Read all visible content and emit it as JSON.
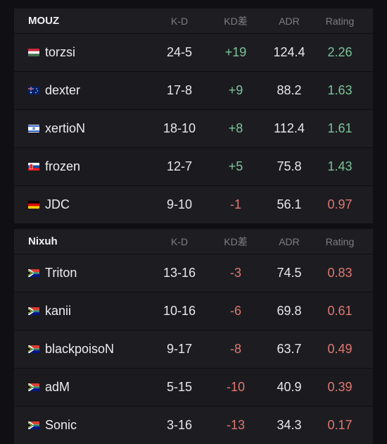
{
  "columns": {
    "kd": "K-D",
    "diff": "KD差",
    "adr": "ADR",
    "rating": "Rating"
  },
  "teams": [
    {
      "name": "MOUZ",
      "players": [
        {
          "name": "torzsi",
          "flag": "hungary-flag-icon",
          "kd": "24-5",
          "diff": "+19",
          "adr": "124.4",
          "rating": "2.26"
        },
        {
          "name": "dexter",
          "flag": "australia-flag-icon",
          "kd": "17-8",
          "diff": "+9",
          "adr": "88.2",
          "rating": "1.63"
        },
        {
          "name": "xertioN",
          "flag": "israel-flag-icon",
          "kd": "18-10",
          "diff": "+8",
          "adr": "112.4",
          "rating": "1.61"
        },
        {
          "name": "frozen",
          "flag": "slovakia-flag-icon",
          "kd": "12-7",
          "diff": "+5",
          "adr": "75.8",
          "rating": "1.43"
        },
        {
          "name": "JDC",
          "flag": "germany-flag-icon",
          "kd": "9-10",
          "diff": "-1",
          "adr": "56.1",
          "rating": "0.97"
        }
      ]
    },
    {
      "name": "Nixuh",
      "players": [
        {
          "name": "Triton",
          "flag": "south-africa-flag-icon",
          "kd": "13-16",
          "diff": "-3",
          "adr": "74.5",
          "rating": "0.83"
        },
        {
          "name": "kanii",
          "flag": "south-africa-flag-icon",
          "kd": "10-16",
          "diff": "-6",
          "adr": "69.8",
          "rating": "0.61"
        },
        {
          "name": "blackpoisoN",
          "flag": "south-africa-flag-icon",
          "kd": "9-17",
          "diff": "-8",
          "adr": "63.7",
          "rating": "0.49"
        },
        {
          "name": "adM",
          "flag": "south-africa-flag-icon",
          "kd": "5-15",
          "diff": "-10",
          "adr": "40.9",
          "rating": "0.39"
        },
        {
          "name": "Sonic",
          "flag": "south-africa-flag-icon",
          "kd": "3-16",
          "diff": "-13",
          "adr": "34.3",
          "rating": "0.17"
        }
      ]
    }
  ],
  "colors": {
    "positive": "#7cc49a",
    "negative": "#e07872"
  }
}
